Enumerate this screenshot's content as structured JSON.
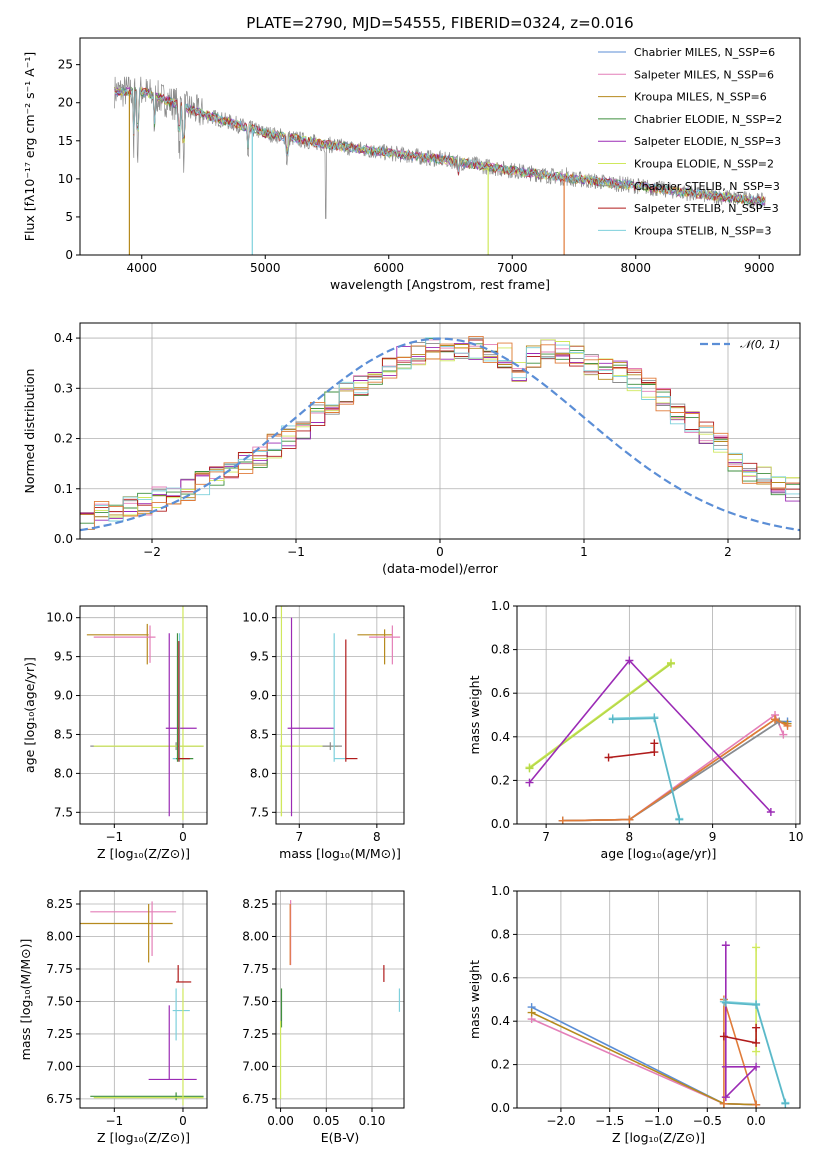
{
  "chart_data": [
    {
      "type": "line",
      "title": "PLATE=2790, MJD=54555, FIBERID=0324, z=0.016",
      "xlabel": "wavelength [Angstrom, rest frame]",
      "ylabel": "Flux [fλ10⁻¹⁷ erg cm⁻² s⁻¹ A⁻¹]",
      "xlim": [
        3500,
        9330
      ],
      "ylim": [
        0,
        28.5
      ],
      "xticks": [
        4000,
        5000,
        6000,
        7000,
        8000,
        9000
      ],
      "yticks": [
        0,
        5,
        10,
        15,
        20,
        25
      ],
      "legend": "top-right",
      "series": [
        {
          "name": "Chabrier MILES, N_SSP=6",
          "color": "#5b8ed6"
        },
        {
          "name": "Salpeter MILES, N_SSP=6",
          "color": "#e47fb8"
        },
        {
          "name": "Kroupa MILES, N_SSP=6",
          "color": "#b68a1e"
        },
        {
          "name": "Chabrier ELODIE, N_SSP=2",
          "color": "#3f8f3f"
        },
        {
          "name": "Salpeter ELODIE, N_SSP=3",
          "color": "#9b2bb5"
        },
        {
          "name": "Kroupa ELODIE, N_SSP=2",
          "color": "#cfe85c"
        },
        {
          "name": "Chabrier STELIB, N_SSP=3",
          "color": "#8c8c8c"
        },
        {
          "name": "Salpeter STELIB, N_SSP=3",
          "color": "#b01b1b"
        },
        {
          "name": "Kroupa STELIB, N_SSP=3",
          "color": "#7ed0dc"
        }
      ],
      "continuum": {
        "x": [
          3780,
          4000,
          4500,
          5000,
          5500,
          6000,
          6500,
          7000,
          7500,
          8000,
          8500,
          9050
        ],
        "y": [
          21.5,
          21.5,
          18.5,
          16.0,
          14.5,
          13.4,
          12.4,
          11.1,
          10.0,
          9.1,
          8.0,
          7.0
        ]
      }
    },
    {
      "type": "histogram",
      "xlabel": "(data-model)/error",
      "ylabel": "Normed distribution",
      "xlim": [
        -2.5,
        2.5
      ],
      "ylim": [
        0,
        0.43
      ],
      "xticks": [
        -2,
        -1,
        0,
        1,
        2
      ],
      "yticks": [
        0.0,
        0.1,
        0.2,
        0.3,
        0.4
      ],
      "legend": "top-right",
      "reference_curve": {
        "name": "𝒩(0, 1)",
        "color": "#5b8ed6"
      },
      "bin_width": 0.1,
      "profile": [
        0.04,
        0.05,
        0.06,
        0.065,
        0.07,
        0.08,
        0.085,
        0.095,
        0.11,
        0.125,
        0.14,
        0.155,
        0.165,
        0.185,
        0.205,
        0.22,
        0.25,
        0.27,
        0.29,
        0.31,
        0.32,
        0.34,
        0.36,
        0.37,
        0.38,
        0.375,
        0.37,
        0.38,
        0.37,
        0.365,
        0.33,
        0.36,
        0.38,
        0.37,
        0.36,
        0.35,
        0.34,
        0.33,
        0.32,
        0.3,
        0.275,
        0.25,
        0.23,
        0.21,
        0.19,
        0.16,
        0.13,
        0.12,
        0.11,
        0.1
      ]
    },
    {
      "type": "scatter",
      "xlabel": "Z [log₁₀(Z/Z⊙)]",
      "ylabel": "age  [log₁₀(age/yr)]",
      "xlim": [
        -1.5,
        0.35
      ],
      "ylim": [
        7.35,
        10.15
      ],
      "xticks": [
        -1,
        0
      ],
      "yticks": [
        7.5,
        8.0,
        8.5,
        9.0,
        9.5,
        10.0
      ],
      "crosses": [
        {
          "x": [
            -1.4,
            -0.5
          ],
          "y": 9.78,
          "color": "#b68a1e",
          "v": [
            9.4,
            9.92
          ],
          "vx": -0.52
        },
        {
          "x": [
            -1.3,
            -0.4
          ],
          "y": 9.75,
          "color": "#e47fb8",
          "v": [
            9.42,
            9.9
          ],
          "vx": -0.48
        },
        {
          "x": [
            -1.35,
            0.3
          ],
          "y": 8.35,
          "color": "#8c8c8c",
          "v": [
            8.3,
            8.4
          ],
          "vx": -0.1
        },
        {
          "x": [
            -1.3,
            0.3
          ],
          "y": 8.35,
          "color": "#cfe85c",
          "v": [
            7.4,
            10.15
          ],
          "vx": 0.0
        },
        {
          "x": [
            -0.25,
            0.2
          ],
          "y": 8.58,
          "color": "#9b2bb5",
          "v": [
            7.45,
            9.8
          ],
          "vx": -0.2
        },
        {
          "x": [
            -0.15,
            0.1
          ],
          "y": 8.19,
          "color": "#7ed0dc",
          "v": [
            8.15,
            9.8
          ],
          "vx": -0.05
        },
        {
          "x": [
            -0.1,
            0.15
          ],
          "y": 8.19,
          "color": "#3f8f3f",
          "v": [
            8.15,
            9.8
          ],
          "vx": -0.08
        },
        {
          "x": [
            -0.05,
            0.1
          ],
          "y": 8.19,
          "color": "#b01b1b",
          "v": [
            8.15,
            9.7
          ],
          "vx": -0.06
        }
      ]
    },
    {
      "type": "scatter",
      "xlabel": "mass [log₁₀(M/M⊙)]",
      "ylabel": "",
      "xlim": [
        6.7,
        8.35
      ],
      "ylim": [
        7.35,
        10.15
      ],
      "xticks": [
        7,
        8
      ],
      "yticks": [
        7.5,
        8.0,
        8.5,
        9.0,
        9.5,
        10.0
      ],
      "crosses": [
        {
          "x": [
            6.75,
            6.85
          ],
          "y": 10.15,
          "color": "#cfe85c",
          "v": [
            7.45,
            10.15
          ],
          "vx": 6.77
        },
        {
          "x": [
            6.75,
            7.5
          ],
          "y": 8.35,
          "color": "#cfe85c",
          "v": [
            7.45,
            8.4
          ],
          "vx": 6.77
        },
        {
          "x": [
            6.85,
            7.45
          ],
          "y": 8.58,
          "color": "#9b2bb5",
          "v": [
            7.45,
            10.0
          ],
          "vx": 6.9
        },
        {
          "x": [
            7.3,
            7.55
          ],
          "y": 8.35,
          "color": "#8c8c8c",
          "v": [
            8.3,
            8.4
          ],
          "vx": 7.4
        },
        {
          "x": [
            7.45,
            7.6
          ],
          "y": 8.19,
          "color": "#7ed0dc",
          "v": [
            8.15,
            9.8
          ],
          "vx": 7.45
        },
        {
          "x": [
            7.6,
            7.75
          ],
          "y": 8.19,
          "color": "#b01b1b",
          "v": [
            8.15,
            9.72
          ],
          "vx": 7.6
        },
        {
          "x": [
            7.75,
            8.2
          ],
          "y": 9.78,
          "color": "#b68a1e",
          "v": [
            9.4,
            9.85
          ],
          "vx": 8.1
        },
        {
          "x": [
            7.9,
            8.3
          ],
          "y": 9.75,
          "color": "#e47fb8",
          "v": [
            9.4,
            9.9
          ],
          "vx": 8.2
        }
      ]
    },
    {
      "type": "line",
      "xlabel": "age  [log₁₀(age/yr)]",
      "ylabel": "mass weight",
      "xlim": [
        6.65,
        10.05
      ],
      "ylim": [
        0,
        1.0
      ],
      "xticks": [
        7,
        8,
        9,
        10
      ],
      "yticks": [
        0.0,
        0.2,
        0.4,
        0.6,
        0.8,
        1.0
      ],
      "series": [
        {
          "color": "#5b8ed6",
          "x": [
            7.2,
            8.0,
            9.8,
            9.9
          ],
          "y": [
            0.015,
            0.02,
            0.47,
            0.47
          ]
        },
        {
          "color": "#e47fb8",
          "x": [
            7.2,
            8.0,
            9.75,
            9.85
          ],
          "y": [
            0.015,
            0.02,
            0.5,
            0.41
          ]
        },
        {
          "color": "#b68a1e",
          "x": [
            7.2,
            8.0,
            9.75,
            9.9
          ],
          "y": [
            0.015,
            0.02,
            0.48,
            0.46
          ]
        },
        {
          "color": "#8c8c8c",
          "x": [
            7.2,
            8.0,
            9.8
          ],
          "y": [
            0.015,
            0.02,
            0.47
          ]
        },
        {
          "color": "#e07b39",
          "x": [
            7.2,
            8.0,
            9.75,
            9.9
          ],
          "y": [
            0.015,
            0.02,
            0.48,
            0.45
          ]
        },
        {
          "color": "#cfe85c",
          "x": [
            6.8,
            8.5
          ],
          "y": [
            0.26,
            0.74
          ]
        },
        {
          "color": "#b4d84a",
          "x": [
            6.8,
            8.5
          ],
          "y": [
            0.255,
            0.735
          ]
        },
        {
          "color": "#9b2bb5",
          "x": [
            6.8,
            8.0,
            9.7
          ],
          "y": [
            0.19,
            0.75,
            0.055
          ]
        },
        {
          "color": "#b01b1b",
          "x": [
            7.75,
            8.3,
            8.3
          ],
          "y": [
            0.305,
            0.33,
            0.37
          ]
        },
        {
          "color": "#7ed0dc",
          "x": [
            7.8,
            8.3,
            8.6
          ],
          "y": [
            0.485,
            0.49,
            0.025
          ]
        },
        {
          "color": "#5bb8c8",
          "x": [
            7.8,
            8.3,
            8.6
          ],
          "y": [
            0.48,
            0.485,
            0.02
          ]
        }
      ]
    },
    {
      "type": "scatter",
      "xlabel": "Z [log₁₀(Z/Z⊙)]",
      "ylabel": "mass [log₁₀(M/M⊙)]",
      "xlim": [
        -1.5,
        0.35
      ],
      "ylim": [
        6.68,
        8.35
      ],
      "xticks": [
        -1,
        0
      ],
      "yticks": [
        6.75,
        7.0,
        7.25,
        7.5,
        7.75,
        8.0,
        8.25
      ],
      "crosses": [
        {
          "x": [
            -1.35,
            -0.1
          ],
          "y": 8.19,
          "color": "#e47fb8",
          "v": [
            7.85,
            8.27
          ],
          "vx": -0.45
        },
        {
          "x": [
            -1.5,
            -0.15
          ],
          "y": 8.1,
          "color": "#b68a1e",
          "v": [
            7.8,
            8.25
          ],
          "vx": -0.5
        },
        {
          "x": [
            -1.35,
            0.3
          ],
          "y": 6.77,
          "color": "#3f8f3f",
          "v": [
            6.74,
            6.8
          ],
          "vx": -0.1
        },
        {
          "x": [
            -1.3,
            0.3
          ],
          "y": 6.76,
          "color": "#cfe85c",
          "v": [
            6.7,
            6.8
          ],
          "vx": 0.0
        },
        {
          "x": [
            -0.5,
            0.2
          ],
          "y": 6.9,
          "color": "#9b2bb5",
          "v": [
            6.9,
            7.47
          ],
          "vx": -0.2
        },
        {
          "x": [
            -0.15,
            0.1
          ],
          "y": 7.43,
          "color": "#7ed0dc",
          "v": [
            7.2,
            7.6
          ],
          "vx": -0.1
        },
        {
          "x": [
            -0.1,
            0.12
          ],
          "y": 7.65,
          "color": "#b01b1b",
          "v": [
            7.65,
            7.78
          ],
          "vx": -0.07
        },
        {
          "x": [
            0.0,
            0.0
          ],
          "y": 7.45,
          "color": "#cfe85c",
          "v": [
            6.8,
            7.6
          ],
          "vx": 0.0
        }
      ]
    },
    {
      "type": "scatter",
      "xlabel": "E(B-V)",
      "ylabel": "",
      "xlim": [
        -0.005,
        0.135
      ],
      "ylim": [
        6.68,
        8.35
      ],
      "xticks": [
        0.0,
        0.05,
        0.1
      ],
      "yticks": [
        6.75,
        7.0,
        7.25,
        7.5,
        7.75,
        8.0,
        8.25
      ],
      "xticklabels": [
        "0.00",
        "0.05",
        "0.10"
      ],
      "crosses": [
        {
          "x": [
            0.0,
            0.0
          ],
          "y": 8.0,
          "color": "#e47fb8",
          "v": [
            7.78,
            8.28
          ],
          "vx": 0.011
        },
        {
          "x": [
            0.0,
            0.0
          ],
          "y": 8.0,
          "color": "#e07b39",
          "v": [
            7.78,
            8.25
          ],
          "vx": 0.0105
        },
        {
          "x": [
            0.0,
            0.0
          ],
          "y": 7.5,
          "color": "#3f8f3f",
          "v": [
            7.3,
            7.6
          ],
          "vx": 0.001
        },
        {
          "x": [
            0.0,
            0.0
          ],
          "y": 7.0,
          "color": "#cfe85c",
          "v": [
            6.75,
            7.35
          ],
          "vx": 0.0
        },
        {
          "x": [
            0.0,
            0.0
          ],
          "y": 7.7,
          "color": "#b01b1b",
          "v": [
            7.65,
            7.78
          ],
          "vx": 0.113
        },
        {
          "x": [
            0.0,
            0.0
          ],
          "y": 7.5,
          "color": "#7ed0dc",
          "v": [
            7.42,
            7.6
          ],
          "vx": 0.13
        }
      ]
    },
    {
      "type": "line",
      "xlabel": "Z [log₁₀(Z/Z⊙)]",
      "ylabel": "mass weight",
      "xlim": [
        -2.45,
        0.45
      ],
      "ylim": [
        0,
        1.0
      ],
      "xticks": [
        -2.0,
        -1.5,
        -1.0,
        -0.5,
        0.0
      ],
      "yticks": [
        0.0,
        0.2,
        0.4,
        0.6,
        0.8,
        1.0
      ],
      "xticklabels": [
        "−2.0",
        "−1.5",
        "−1.0",
        "−0.5",
        "0.0"
      ],
      "series": [
        {
          "color": "#5b8ed6",
          "x": [
            -2.3,
            -0.33,
            0.0
          ],
          "y": [
            0.465,
            0.02,
            0.015
          ]
        },
        {
          "color": "#e47fb8",
          "x": [
            -2.3,
            -0.33,
            0.0
          ],
          "y": [
            0.41,
            0.02,
            0.015
          ]
        },
        {
          "color": "#b68a1e",
          "x": [
            -2.3,
            -0.33,
            0.0
          ],
          "y": [
            0.44,
            0.02,
            0.015
          ]
        },
        {
          "color": "#e07b39",
          "x": [
            -0.33,
            -0.33,
            0.0
          ],
          "y": [
            0.02,
            0.5,
            0.015
          ]
        },
        {
          "color": "#9b2bb5",
          "x": [
            -0.31,
            -0.31,
            0.0,
            -0.31
          ],
          "y": [
            0.75,
            0.05,
            0.19,
            0.19
          ]
        },
        {
          "color": "#cfe85c",
          "x": [
            0.0,
            0.0
          ],
          "y": [
            0.74,
            0.26
          ]
        },
        {
          "color": "#b01b1b",
          "x": [
            -0.33,
            0.0,
            0.0
          ],
          "y": [
            0.33,
            0.3,
            0.37
          ]
        },
        {
          "color": "#7ed0dc",
          "x": [
            -0.33,
            0.0,
            0.3
          ],
          "y": [
            0.49,
            0.48,
            0.025
          ]
        },
        {
          "color": "#5bb8c8",
          "x": [
            -0.31,
            0.0,
            0.3
          ],
          "y": [
            0.485,
            0.475,
            0.02
          ]
        }
      ]
    }
  ]
}
